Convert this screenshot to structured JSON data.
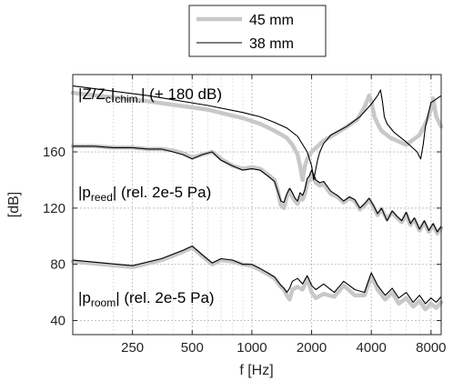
{
  "chart_data": {
    "type": "line",
    "xlabel": "f [Hz]",
    "ylabel": "[dB]",
    "xscale": "log",
    "xlim": [
      125,
      9000
    ],
    "ylim": [
      30,
      215
    ],
    "x_ticks": [
      250,
      500,
      1000,
      2000,
      4000,
      8000
    ],
    "y_ticks": [
      40,
      80,
      120,
      160
    ],
    "grid": true,
    "legend": {
      "placement": "top-center, above plot",
      "entries": [
        "45 mm",
        "38 mm"
      ]
    },
    "annotations": {
      "chimney": {
        "prefix": "|Z/Z",
        "sub": "c",
        "sub2": "chim.",
        "suffix": "| (+ 180 dB)"
      },
      "reed": {
        "prefix": "|p",
        "sub": "reed",
        "suffix": "| (rel. 2e-5 Pa)"
      },
      "room": {
        "prefix": "|p",
        "sub": "room",
        "suffix": "| (rel. 2e-5 Pa)"
      }
    },
    "series": [
      {
        "name": "45 mm",
        "color": "#c8c8c8",
        "groups": [
          {
            "label": "chimney",
            "x": [
              125,
              300,
              600,
              900,
              1100,
              1300,
              1500,
              1600,
              1700,
              1750,
              1800,
              1850,
              1900,
              2000,
              2300,
              2800,
              3400,
              3700,
              3900,
              4000,
              4150,
              4300,
              4500,
              5000,
              6000,
              7000,
              7600,
              8000,
              8200,
              8500,
              9000
            ],
            "y": [
              202,
              196,
              190,
              184,
              180,
              175,
              170,
              165,
              158,
              150,
              140,
              150,
              155,
              160,
              168,
              175,
              183,
              192,
              200,
              196,
              185,
              180,
              175,
              170,
              165,
              172,
              182,
              190,
              198,
              185,
              178
            ]
          },
          {
            "label": "reed",
            "x": [
              125,
              160,
              200,
              250,
              300,
              350,
              400,
              450,
              500,
              560,
              630,
              700,
              800,
              900,
              1000,
              1100,
              1200,
              1300,
              1350,
              1400,
              1450,
              1500,
              1550,
              1600,
              1650,
              1700,
              1750,
              1800,
              1850,
              1900,
              1950,
              2000,
              2100,
              2200,
              2300,
              2500,
              2700,
              2900,
              3100,
              3300,
              3500,
              3700,
              3900,
              4100,
              4300,
              4500,
              4800,
              5100,
              5400,
              5700,
              6000,
              6300,
              6600,
              7000,
              7400,
              7800,
              8200,
              8600,
              9000
            ],
            "y": [
              164,
              164,
              163,
              163,
              162,
              162,
              161,
              159,
              156,
              158,
              160,
              155,
              150,
              148,
              149,
              148,
              144,
              140,
              133,
              122,
              120,
              128,
              133,
              128,
              125,
              123,
              128,
              126,
              130,
              138,
              140,
              145,
              138,
              136,
              137,
              130,
              128,
              124,
              127,
              125,
              119,
              122,
              126,
              121,
              115,
              119,
              112,
              117,
              113,
              110,
              116,
              108,
              112,
              104,
              110,
              103,
              108,
              102,
              106
            ]
          },
          {
            "label": "room",
            "x": [
              125,
              250,
              350,
              450,
              500,
              560,
              630,
              700,
              800,
              900,
              1000,
              1100,
              1200,
              1300,
              1400,
              1450,
              1500,
              1550,
              1600,
              1700,
              1800,
              1900,
              2000,
              2100,
              2300,
              2600,
              2900,
              3300,
              3700,
              4000,
              4300,
              4700,
              5100,
              5500,
              6000,
              6500,
              7000,
              7500,
              8000,
              8500,
              9000
            ],
            "y": [
              82,
              78,
              83,
              89,
              92,
              86,
              80,
              83,
              82,
              80,
              79,
              76,
              73,
              70,
              64,
              62,
              58,
              55,
              62,
              64,
              62,
              70,
              60,
              56,
              59,
              57,
              65,
              58,
              58,
              72,
              62,
              55,
              60,
              52,
              56,
              50,
              54,
              48,
              52,
              49,
              53
            ]
          }
        ]
      },
      {
        "name": "38 mm",
        "color": "#000000",
        "groups": [
          {
            "label": "chimney",
            "x": [
              125,
              300,
              600,
              900,
              1100,
              1300,
              1500,
              1700,
              1900,
              2000,
              2050,
              2100,
              2150,
              2200,
              2300,
              2500,
              3000,
              3500,
              4000,
              4300,
              4450,
              4550,
              4650,
              4800,
              5200,
              6000,
              6800,
              7100,
              7300,
              7500,
              7700,
              8000,
              9000
            ],
            "y": [
              207,
              200,
              193,
              188,
              185,
              181,
              177,
              171,
              160,
              150,
              140,
              148,
              155,
              160,
              166,
              172,
              178,
              185,
              194,
              200,
              204,
              196,
              185,
              180,
              174,
              167,
              160,
              155,
              165,
              178,
              185,
              195,
              200
            ]
          },
          {
            "label": "reed",
            "x": [
              125,
              160,
              200,
              250,
              300,
              350,
              400,
              450,
              500,
              560,
              630,
              700,
              800,
              900,
              1000,
              1100,
              1200,
              1300,
              1350,
              1400,
              1450,
              1500,
              1550,
              1600,
              1650,
              1700,
              1750,
              1800,
              1850,
              1900,
              1950,
              2000,
              2100,
              2200,
              2300,
              2500,
              2700,
              2900,
              3100,
              3300,
              3500,
              3700,
              3900,
              4100,
              4300,
              4500,
              4800,
              5100,
              5400,
              5700,
              6000,
              6300,
              6600,
              7000,
              7400,
              7800,
              8200,
              8600,
              9000
            ],
            "y": [
              164,
              164,
              163,
              163,
              162,
              162,
              160,
              158,
              155,
              158,
              160,
              154,
              150,
              147,
              148,
              147,
              143,
              139,
              132,
              125,
              124,
              130,
              134,
              131,
              127,
              125,
              131,
              129,
              133,
              141,
              143,
              147,
              140,
              138,
              139,
              132,
              129,
              125,
              128,
              126,
              120,
              123,
              127,
              122,
              116,
              120,
              111,
              118,
              114,
              111,
              117,
              109,
              113,
              105,
              111,
              104,
              109,
              103,
              107
            ]
          },
          {
            "label": "room",
            "x": [
              125,
              250,
              350,
              450,
              500,
              560,
              630,
              700,
              800,
              900,
              1000,
              1100,
              1200,
              1300,
              1400,
              1450,
              1500,
              1550,
              1600,
              1700,
              1800,
              1900,
              2000,
              2100,
              2300,
              2600,
              2900,
              3300,
              3700,
              4000,
              4300,
              4700,
              5100,
              5500,
              6000,
              6500,
              7000,
              7500,
              8000,
              8500,
              9000
            ],
            "y": [
              83,
              79,
              84,
              90,
              93,
              87,
              81,
              84,
              83,
              80,
              80,
              77,
              74,
              71,
              65,
              63,
              60,
              63,
              68,
              70,
              66,
              72,
              65,
              62,
              66,
              60,
              68,
              62,
              60,
              74,
              65,
              58,
              63,
              56,
              60,
              53,
              58,
              52,
              56,
              53,
              57
            ]
          }
        ]
      }
    ]
  }
}
